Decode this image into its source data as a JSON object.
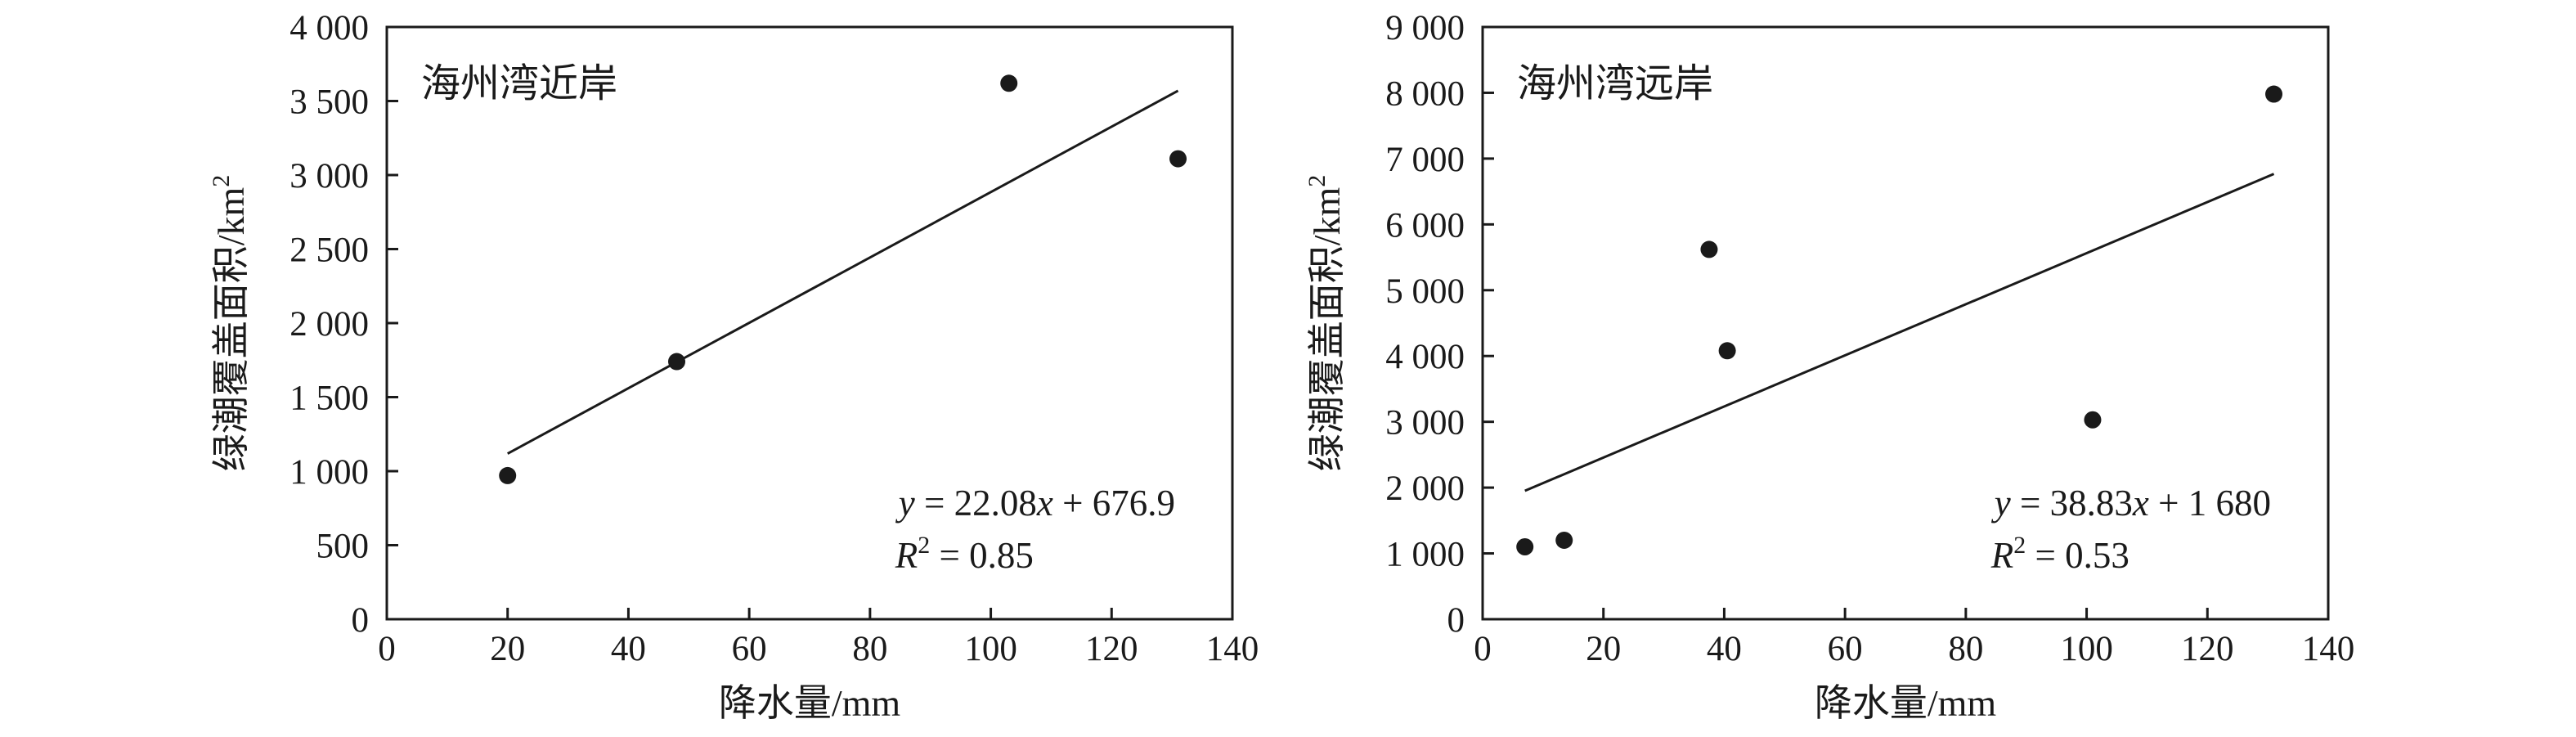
{
  "chart_data": [
    {
      "type": "scatter",
      "title": "海州湾近岸",
      "xlabel": "降水量/mm",
      "ylabel_main": "绿潮覆盖面积/km",
      "ylabel_sup": "2",
      "xlim": [
        0,
        140
      ],
      "ylim": [
        0,
        4000
      ],
      "xticks": [
        0,
        20,
        40,
        60,
        80,
        100,
        120,
        140
      ],
      "yticks": [
        0,
        500,
        1000,
        1500,
        2000,
        2500,
        3000,
        3500,
        4000
      ],
      "xtick_labels": [
        "0",
        "20",
        "40",
        "60",
        "80",
        "100",
        "120",
        "140"
      ],
      "ytick_labels": [
        "0",
        "500",
        "1 000",
        "1 500",
        "2 000",
        "2 500",
        "3 000",
        "3 500",
        "4 000"
      ],
      "points": [
        {
          "x": 20,
          "y": 970
        },
        {
          "x": 48,
          "y": 1740
        },
        {
          "x": 103,
          "y": 3620
        },
        {
          "x": 131,
          "y": 3110
        }
      ],
      "fit": {
        "slope": 22.08,
        "intercept": 676.9,
        "x_range": [
          20,
          131
        ]
      },
      "equation_parts": {
        "y": "y",
        "mid": " = 22.08",
        "x": "x",
        "tail": " + 676.9"
      },
      "r2_parts": {
        "r": "R",
        "sup": "2",
        "tail": " = 0.85"
      },
      "grid": false,
      "legend": "none"
    },
    {
      "type": "scatter",
      "title": "海州湾远岸",
      "xlabel": "降水量/mm",
      "ylabel_main": "绿潮覆盖面积/km",
      "ylabel_sup": "2",
      "xlim": [
        0,
        140
      ],
      "ylim": [
        0,
        9000
      ],
      "xticks": [
        0,
        20,
        40,
        60,
        80,
        100,
        120,
        140
      ],
      "yticks": [
        0,
        1000,
        2000,
        3000,
        4000,
        5000,
        6000,
        7000,
        8000,
        9000
      ],
      "xtick_labels": [
        "0",
        "20",
        "40",
        "60",
        "80",
        "100",
        "120",
        "140"
      ],
      "ytick_labels": [
        "0",
        "1 000",
        "2 000",
        "3 000",
        "4 000",
        "5 000",
        "6 000",
        "7 000",
        "8 000",
        "9 000"
      ],
      "points": [
        {
          "x": 7,
          "y": 1100
        },
        {
          "x": 13.5,
          "y": 1200
        },
        {
          "x": 37.5,
          "y": 5620
        },
        {
          "x": 40.5,
          "y": 4080
        },
        {
          "x": 101,
          "y": 3030
        },
        {
          "x": 131,
          "y": 7980
        }
      ],
      "fit": {
        "slope": 38.83,
        "intercept": 1680,
        "x_range": [
          7,
          131
        ]
      },
      "equation_parts": {
        "y": "y",
        "mid": " = 38.83",
        "x": "x",
        "tail": " + 1 680"
      },
      "r2_parts": {
        "r": "R",
        "sup": "2",
        "tail": " = 0.53"
      },
      "grid": false,
      "legend": "none"
    }
  ]
}
